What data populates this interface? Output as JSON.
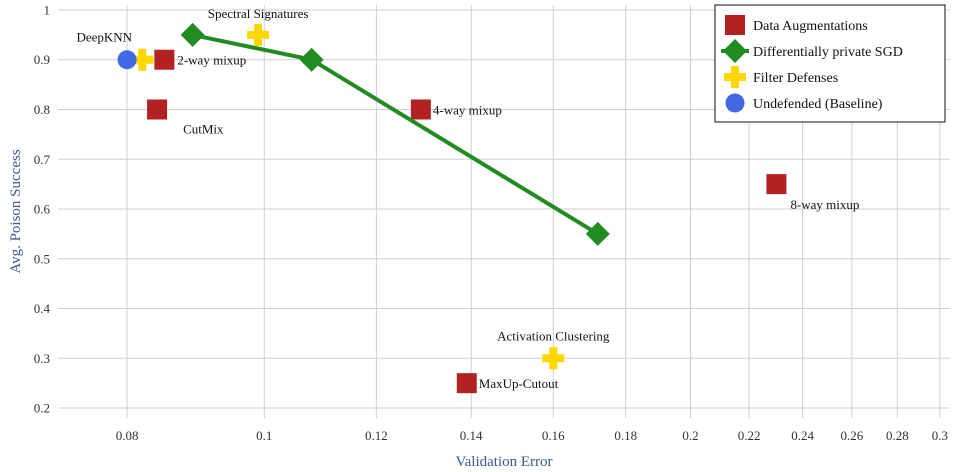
{
  "chart_data": {
    "type": "scatter",
    "xlabel": "Validation Error",
    "ylabel": "Avg. Poison Success",
    "x_scale": "log",
    "xlim": [
      0.0715,
      0.305
    ],
    "ylim": [
      0.18,
      1.01
    ],
    "x_ticks": [
      0.08,
      0.1,
      0.12,
      0.14,
      0.16,
      0.18,
      0.2,
      0.22,
      0.24,
      0.26,
      0.28,
      0.3
    ],
    "x_tick_labels": [
      "0.08",
      "0.1",
      "0.12",
      "0.14",
      "0.16",
      "0.18",
      "0.2",
      "0.22",
      "0.24",
      "0.26",
      "0.28",
      "0.3"
    ],
    "y_ticks": [
      0.2,
      0.3,
      0.4,
      0.5,
      0.6,
      0.7,
      0.8,
      0.9,
      1.0
    ],
    "y_tick_labels": [
      "0.2",
      "0.3",
      "0.4",
      "0.5",
      "0.6",
      "0.7",
      "0.8",
      "0.9",
      "1"
    ],
    "grid": true,
    "legend_position": "top-right",
    "series": [
      {
        "name": "Data Augmentations",
        "marker": "square",
        "color": "#b22222",
        "points": [
          {
            "x": 0.085,
            "y": 0.9,
            "label": "2-way mixup"
          },
          {
            "x": 0.084,
            "y": 0.8,
            "label": "CutMix"
          },
          {
            "x": 0.129,
            "y": 0.8,
            "label": "4-way mixup"
          },
          {
            "x": 0.139,
            "y": 0.25,
            "label": "MaxUp-Cutout"
          },
          {
            "x": 0.23,
            "y": 0.65,
            "label": "8-way mixup"
          }
        ]
      },
      {
        "name": "Differentially private SGD",
        "marker": "diamond",
        "line": true,
        "color": "#228b22",
        "points": [
          {
            "x": 0.089,
            "y": 0.95
          },
          {
            "x": 0.108,
            "y": 0.9
          },
          {
            "x": 0.172,
            "y": 0.55
          }
        ]
      },
      {
        "name": "Filter Defenses",
        "marker": "cross",
        "color": "#ffd700",
        "points": [
          {
            "x": 0.082,
            "y": 0.9,
            "label": "DeepKNN"
          },
          {
            "x": 0.099,
            "y": 0.95,
            "label": "Spectral Signatures"
          },
          {
            "x": 0.16,
            "y": 0.3,
            "label": "Activation Clustering"
          }
        ]
      },
      {
        "name": "Undefended (Baseline)",
        "marker": "circle",
        "color": "#4169e1",
        "points": [
          {
            "x": 0.08,
            "y": 0.9
          }
        ]
      }
    ]
  }
}
